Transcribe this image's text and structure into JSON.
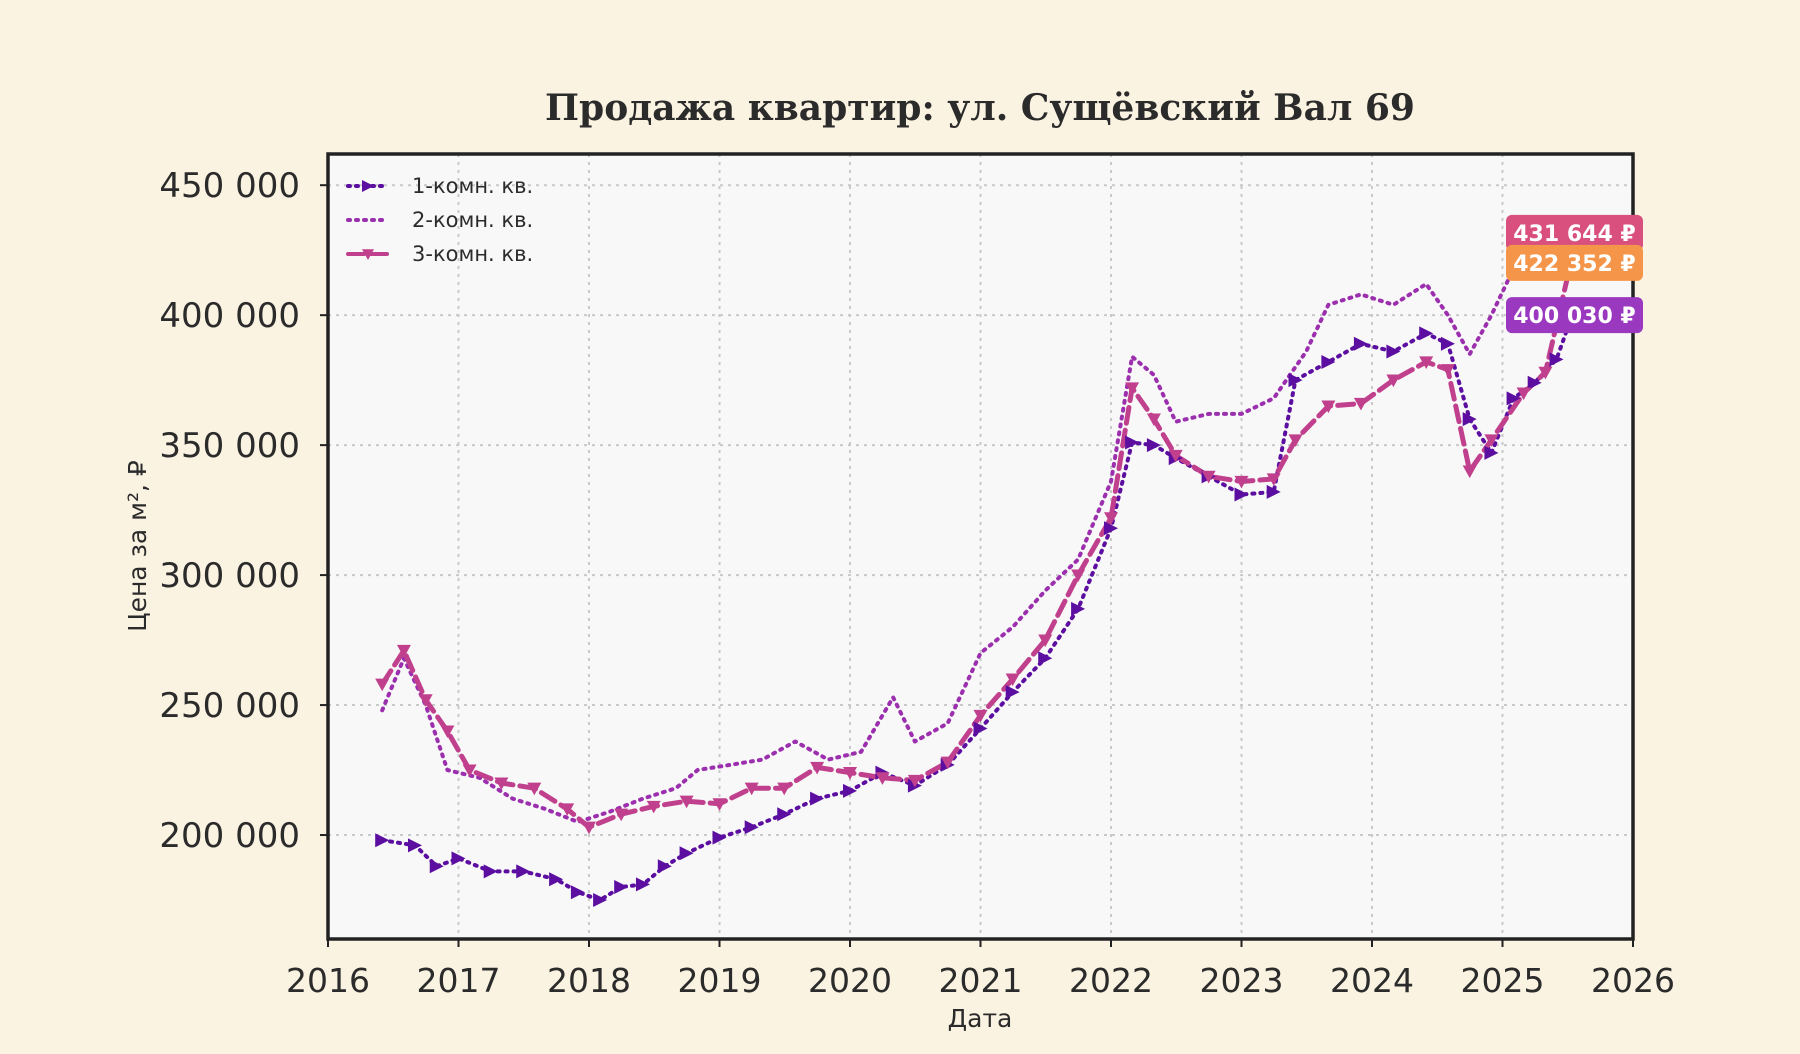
{
  "chart_data": {
    "type": "line",
    "title": "Продажа квартир: ул. Сущёвский Вал 69",
    "xlabel": "Дата",
    "ylabel": "Цена за м², ₽",
    "xlim": [
      "2016-01-01",
      "2026-01-01"
    ],
    "ylim": [
      160000,
      462000
    ],
    "x_ticks": [
      "2016",
      "2017",
      "2018",
      "2019",
      "2020",
      "2021",
      "2022",
      "2023",
      "2024",
      "2025",
      "2026"
    ],
    "y_ticks": [
      "200 000",
      "250 000",
      "300 000",
      "350 000",
      "400 000",
      "450 000"
    ],
    "grid": true,
    "legend_position": "top-left",
    "series": [
      {
        "name": "1-комн. кв.",
        "color": "#5b0ea0",
        "line_style": "dotted",
        "marker": "triangle-right",
        "points": [
          [
            "2016-06-01",
            198000
          ],
          [
            "2016-09-01",
            196000
          ],
          [
            "2016-11-01",
            188000
          ],
          [
            "2017-01-01",
            191000
          ],
          [
            "2017-04-01",
            186000
          ],
          [
            "2017-07-01",
            186000
          ],
          [
            "2017-10-01",
            183000
          ],
          [
            "2017-12-01",
            178000
          ],
          [
            "2018-02-01",
            175000
          ],
          [
            "2018-04-01",
            180000
          ],
          [
            "2018-06-01",
            181000
          ],
          [
            "2018-08-01",
            188000
          ],
          [
            "2018-10-01",
            193000
          ],
          [
            "2019-01-01",
            199000
          ],
          [
            "2019-04-01",
            203000
          ],
          [
            "2019-07-01",
            208000
          ],
          [
            "2019-10-01",
            214000
          ],
          [
            "2020-01-01",
            217000
          ],
          [
            "2020-04-01",
            224000
          ],
          [
            "2020-07-01",
            219000
          ],
          [
            "2020-10-01",
            227000
          ],
          [
            "2021-01-01",
            241000
          ],
          [
            "2021-04-01",
            255000
          ],
          [
            "2021-07-01",
            268000
          ],
          [
            "2021-10-01",
            287000
          ],
          [
            "2022-01-01",
            318000
          ],
          [
            "2022-03-01",
            351000
          ],
          [
            "2022-05-01",
            350000
          ],
          [
            "2022-07-01",
            345000
          ],
          [
            "2022-10-01",
            338000
          ],
          [
            "2023-01-01",
            331000
          ],
          [
            "2023-04-01",
            332000
          ],
          [
            "2023-06-01",
            375000
          ],
          [
            "2023-09-01",
            382000
          ],
          [
            "2023-12-01",
            389000
          ],
          [
            "2024-03-01",
            386000
          ],
          [
            "2024-06-01",
            393000
          ],
          [
            "2024-08-01",
            389000
          ],
          [
            "2024-10-01",
            360000
          ],
          [
            "2024-12-01",
            347000
          ],
          [
            "2025-02-01",
            368000
          ],
          [
            "2025-04-01",
            374000
          ],
          [
            "2025-06-01",
            383000
          ],
          [
            "2025-07-15",
            400030
          ]
        ]
      },
      {
        "name": "2-комн. кв.",
        "color": "#9b2fae",
        "line_style": "dotted",
        "marker": "none",
        "points": [
          [
            "2016-06-01",
            248000
          ],
          [
            "2016-08-01",
            268000
          ],
          [
            "2016-10-01",
            250000
          ],
          [
            "2016-12-01",
            225000
          ],
          [
            "2017-03-01",
            222000
          ],
          [
            "2017-06-01",
            214000
          ],
          [
            "2017-09-01",
            210000
          ],
          [
            "2017-12-01",
            205000
          ],
          [
            "2018-03-01",
            209000
          ],
          [
            "2018-06-01",
            214000
          ],
          [
            "2018-09-01",
            218000
          ],
          [
            "2018-11-01",
            225000
          ],
          [
            "2019-02-01",
            227000
          ],
          [
            "2019-05-01",
            229000
          ],
          [
            "2019-08-01",
            236000
          ],
          [
            "2019-11-01",
            229000
          ],
          [
            "2020-02-01",
            232000
          ],
          [
            "2020-05-01",
            253000
          ],
          [
            "2020-07-01",
            236000
          ],
          [
            "2020-10-01",
            243000
          ],
          [
            "2021-01-01",
            270000
          ],
          [
            "2021-04-01",
            280000
          ],
          [
            "2021-07-01",
            294000
          ],
          [
            "2021-10-01",
            306000
          ],
          [
            "2022-01-01",
            336000
          ],
          [
            "2022-03-01",
            384000
          ],
          [
            "2022-05-01",
            377000
          ],
          [
            "2022-07-01",
            359000
          ],
          [
            "2022-10-01",
            362000
          ],
          [
            "2023-01-01",
            362000
          ],
          [
            "2023-04-01",
            368000
          ],
          [
            "2023-07-01",
            386000
          ],
          [
            "2023-09-01",
            404000
          ],
          [
            "2023-12-01",
            408000
          ],
          [
            "2024-03-01",
            404000
          ],
          [
            "2024-06-01",
            412000
          ],
          [
            "2024-08-01",
            400000
          ],
          [
            "2024-10-01",
            385000
          ],
          [
            "2024-12-01",
            400000
          ],
          [
            "2025-03-01",
            426000
          ],
          [
            "2025-05-01",
            430000
          ],
          [
            "2025-07-15",
            431644
          ]
        ]
      },
      {
        "name": "3-комн. кв.",
        "color": "#c0408d",
        "line_style": "dashed",
        "marker": "triangle-down",
        "points": [
          [
            "2016-06-01",
            258000
          ],
          [
            "2016-08-01",
            271000
          ],
          [
            "2016-10-01",
            252000
          ],
          [
            "2016-12-01",
            240000
          ],
          [
            "2017-02-01",
            225000
          ],
          [
            "2017-05-01",
            220000
          ],
          [
            "2017-08-01",
            218000
          ],
          [
            "2017-11-01",
            210000
          ],
          [
            "2018-01-01",
            203000
          ],
          [
            "2018-04-01",
            208000
          ],
          [
            "2018-07-01",
            211000
          ],
          [
            "2018-10-01",
            213000
          ],
          [
            "2019-01-01",
            212000
          ],
          [
            "2019-04-01",
            218000
          ],
          [
            "2019-07-01",
            218000
          ],
          [
            "2019-10-01",
            226000
          ],
          [
            "2020-01-01",
            224000
          ],
          [
            "2020-04-01",
            222000
          ],
          [
            "2020-07-01",
            221000
          ],
          [
            "2020-10-01",
            228000
          ],
          [
            "2021-01-01",
            246000
          ],
          [
            "2021-04-01",
            260000
          ],
          [
            "2021-07-01",
            275000
          ],
          [
            "2021-10-01",
            300000
          ],
          [
            "2022-01-01",
            322000
          ],
          [
            "2022-03-01",
            372000
          ],
          [
            "2022-05-01",
            360000
          ],
          [
            "2022-07-01",
            346000
          ],
          [
            "2022-10-01",
            338000
          ],
          [
            "2023-01-01",
            336000
          ],
          [
            "2023-04-01",
            337000
          ],
          [
            "2023-06-01",
            352000
          ],
          [
            "2023-09-01",
            365000
          ],
          [
            "2023-12-01",
            366000
          ],
          [
            "2024-03-01",
            375000
          ],
          [
            "2024-06-01",
            382000
          ],
          [
            "2024-08-01",
            379000
          ],
          [
            "2024-10-01",
            340000
          ],
          [
            "2024-12-01",
            352000
          ],
          [
            "2025-03-01",
            370000
          ],
          [
            "2025-05-01",
            378000
          ],
          [
            "2025-07-15",
            422352
          ]
        ]
      }
    ],
    "end_labels": [
      {
        "text": "431 644 ₽",
        "value": 431644,
        "color": "#d9507f"
      },
      {
        "text": "422 352 ₽",
        "value": 422352,
        "color": "#f5954a"
      },
      {
        "text": "400 030 ₽",
        "value": 400030,
        "color": "#9a38c0"
      }
    ]
  }
}
